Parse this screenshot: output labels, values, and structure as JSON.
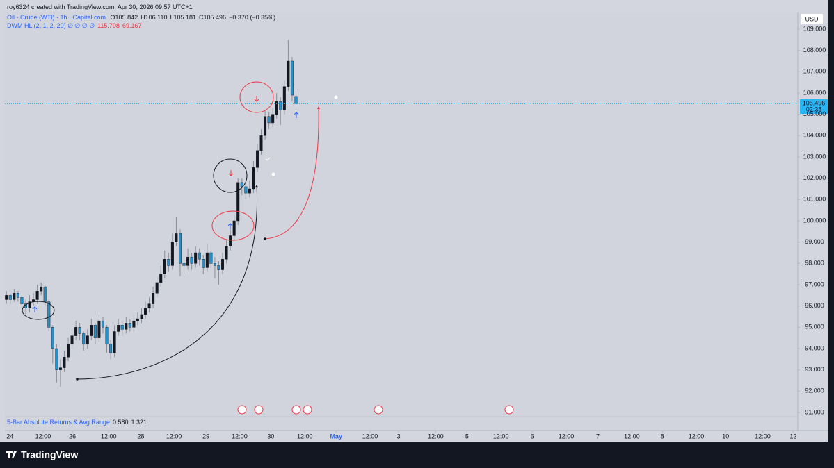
{
  "page": {
    "credit": "roy6324 created with TradingView.com, Apr 30, 2026 09:57 UTC+1",
    "symbol": "Oil - Crude (WTI) · 1h · Capital.com",
    "ohlc": [
      "O105.842",
      "H106.110",
      "L105.181",
      "C105.496",
      "−0.370 (−0.35%)"
    ],
    "indicator": "DWM HL (2, 1, 2, 20) ∅ ∅ ∅ ∅",
    "indicator_values": [
      "115.708",
      "69.167"
    ],
    "currency": "USD",
    "price_label": "105.496",
    "countdown": "02:38",
    "pane": "5-Bar Absolute Returns & Avg Range",
    "pane_values": [
      "0.580",
      "1.321"
    ],
    "brand": "TradingView"
  },
  "chart_data": {
    "type": "candlestick",
    "up_color": "#131722",
    "down_color": "#2a8fc4",
    "open": [
      96.3,
      96.5,
      96.3,
      96.6,
      96.4,
      96.1,
      95.9,
      96.2,
      96.3,
      96.7,
      96.9,
      96.2,
      95.0,
      94.0,
      93.0,
      93.1,
      93.6,
      94.2,
      94.6,
      95.0,
      94.7,
      94.2,
      94.6,
      95.1,
      94.5,
      95.3,
      95.0,
      94.2,
      93.8,
      94.8,
      95.1,
      94.9,
      95.2,
      95.0,
      95.3,
      95.4,
      95.6,
      95.9,
      96.1,
      96.6,
      97.1,
      97.5,
      98.2,
      97.9,
      99.0,
      99.4,
      98.0,
      97.9,
      98.3,
      98.0,
      98.5,
      98.2,
      97.8,
      98.5,
      98.0,
      97.9,
      97.7,
      98.2,
      98.8,
      99.3,
      100.0,
      101.8,
      101.6,
      101.3,
      101.5,
      102.5,
      103.3,
      104.0,
      104.9,
      104.6,
      105.0,
      105.6,
      105.2,
      106.3,
      107.5,
      105.842
    ],
    "high": [
      96.7,
      96.6,
      96.8,
      96.7,
      96.5,
      96.3,
      96.5,
      96.6,
      97.0,
      97.1,
      97.0,
      96.3,
      95.1,
      94.2,
      93.5,
      93.9,
      94.5,
      94.9,
      95.3,
      95.2,
      94.8,
      94.9,
      95.4,
      95.2,
      95.6,
      95.5,
      95.1,
      94.4,
      95.1,
      95.4,
      95.3,
      95.5,
      95.4,
      95.6,
      95.7,
      95.9,
      96.2,
      96.4,
      96.9,
      97.4,
      97.9,
      98.6,
      98.5,
      99.4,
      100.2,
      99.6,
      98.3,
      98.7,
      98.5,
      98.8,
      98.7,
      98.4,
      98.9,
      98.6,
      98.3,
      98.1,
      98.5,
      99.1,
      99.6,
      100.3,
      102.0,
      102.0,
      101.8,
      101.9,
      102.8,
      103.6,
      104.3,
      105.2,
      105.1,
      105.3,
      106.0,
      105.8,
      106.6,
      108.5,
      107.7,
      106.11
    ],
    "low": [
      96.1,
      96.1,
      96.2,
      96.2,
      95.9,
      95.6,
      95.7,
      96.0,
      96.1,
      96.5,
      96.0,
      94.8,
      93.3,
      92.4,
      92.2,
      92.9,
      93.4,
      94.0,
      94.4,
      94.4,
      93.9,
      94.0,
      94.4,
      94.2,
      94.3,
      94.7,
      93.8,
      93.5,
      93.6,
      94.6,
      94.6,
      94.7,
      94.8,
      94.8,
      95.1,
      95.2,
      95.4,
      95.7,
      95.9,
      96.4,
      96.9,
      97.3,
      97.6,
      97.7,
      98.8,
      97.4,
      97.5,
      97.7,
      97.7,
      97.8,
      97.9,
      97.5,
      97.6,
      97.7,
      97.3,
      97.0,
      97.5,
      98.0,
      98.6,
      99.1,
      99.8,
      101.2,
      101.0,
      101.1,
      101.3,
      102.3,
      103.1,
      103.8,
      104.3,
      104.4,
      104.8,
      104.5,
      105.0,
      106.1,
      105.6,
      105.181
    ],
    "close": [
      96.5,
      96.3,
      96.6,
      96.4,
      96.1,
      95.9,
      96.2,
      96.3,
      96.7,
      96.9,
      96.2,
      95.0,
      94.0,
      93.0,
      93.1,
      93.6,
      94.2,
      94.6,
      95.0,
      94.7,
      94.2,
      94.6,
      95.1,
      94.5,
      95.3,
      95.0,
      94.2,
      93.8,
      94.8,
      95.1,
      94.9,
      95.2,
      95.0,
      95.3,
      95.4,
      95.6,
      95.9,
      96.1,
      96.6,
      97.1,
      97.5,
      98.2,
      97.9,
      99.0,
      99.4,
      98.0,
      97.9,
      98.3,
      98.0,
      98.5,
      98.2,
      97.8,
      98.5,
      98.0,
      97.9,
      97.7,
      98.2,
      98.8,
      99.3,
      100.0,
      101.8,
      101.6,
      101.3,
      101.5,
      102.5,
      103.3,
      104.0,
      104.9,
      104.6,
      105.0,
      105.6,
      105.2,
      106.3,
      107.5,
      105.9,
      105.496
    ],
    "xlim": [
      -0.4,
      205
    ],
    "xticks": [
      {
        "value": 0.9,
        "label": "24"
      },
      {
        "value": 9.5,
        "label": "12:00"
      },
      {
        "value": 17.1,
        "label": "26"
      },
      {
        "value": 26.5,
        "label": "12:00"
      },
      {
        "value": 34.8,
        "label": "28"
      },
      {
        "value": 43.4,
        "label": "12:00"
      },
      {
        "value": 51.7,
        "label": "29"
      },
      {
        "value": 60.4,
        "label": "12:00"
      },
      {
        "value": 68.5,
        "label": "30"
      },
      {
        "value": 77.3,
        "label": "12:00"
      },
      {
        "value": 85.4,
        "label": "May"
      },
      {
        "value": 94.2,
        "label": "12:00"
      },
      {
        "value": 101.6,
        "label": "3"
      },
      {
        "value": 111.2,
        "label": "12:00"
      },
      {
        "value": 119.3,
        "label": "5"
      },
      {
        "value": 128.1,
        "label": "12:00"
      },
      {
        "value": 136.2,
        "label": "6"
      },
      {
        "value": 145,
        "label": "12:00"
      },
      {
        "value": 153.2,
        "label": "7"
      },
      {
        "value": 162,
        "label": "12:00"
      },
      {
        "value": 169.9,
        "label": "8"
      },
      {
        "value": 178.7,
        "label": "12:00"
      },
      {
        "value": 186.3,
        "label": "10"
      },
      {
        "value": 195.9,
        "label": "12:00"
      },
      {
        "value": 203.8,
        "label": "12"
      }
    ],
    "ylim": [
      91,
      109
    ],
    "yticks": [
      {
        "value": 91,
        "label": "91.000"
      },
      {
        "value": 92,
        "label": "92.000"
      },
      {
        "value": 93,
        "label": "93.000"
      },
      {
        "value": 94,
        "label": "94.000"
      },
      {
        "value": 95,
        "label": "95.000"
      },
      {
        "value": 96,
        "label": "96.000"
      },
      {
        "value": 97,
        "label": "97.000"
      },
      {
        "value": 98,
        "label": "98.000"
      },
      {
        "value": 99,
        "label": "99.000"
      },
      {
        "value": 100,
        "label": "100.000"
      },
      {
        "value": 101,
        "label": "101.000"
      },
      {
        "value": 102,
        "label": "102.000"
      },
      {
        "value": 103,
        "label": "103.000"
      },
      {
        "value": 104,
        "label": "104.000"
      },
      {
        "value": 105,
        "label": "105.000"
      },
      {
        "value": 106,
        "label": "106.000"
      },
      {
        "value": 107,
        "label": "107.000"
      },
      {
        "value": 108,
        "label": "108.000"
      },
      {
        "value": 109,
        "label": "109.000"
      }
    ]
  }
}
